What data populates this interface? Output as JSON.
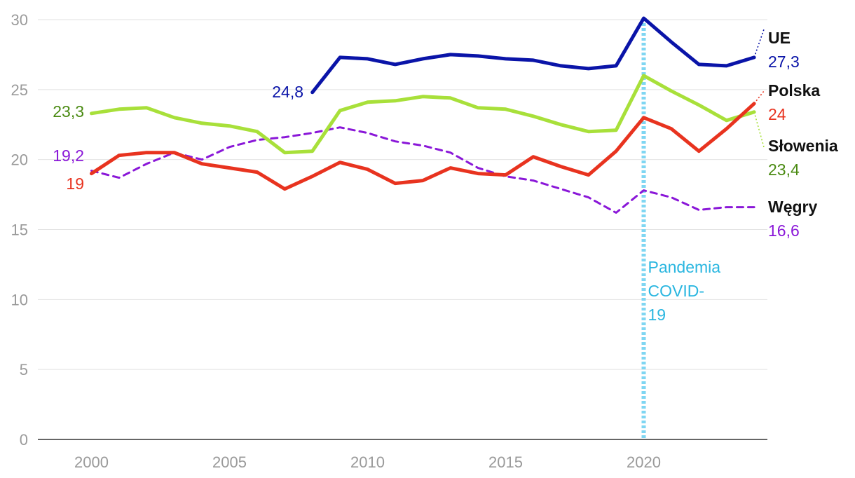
{
  "chart_data": {
    "type": "line",
    "title": "",
    "xlabel": "",
    "ylabel": "",
    "xlim": [
      1998,
      2024.5
    ],
    "ylim": [
      0,
      30
    ],
    "grid": true,
    "x_ticks": [
      2000,
      2005,
      2010,
      2015,
      2020
    ],
    "y_ticks": [
      0,
      5,
      10,
      15,
      20,
      25,
      30
    ],
    "x_tick_labels": [
      "2000",
      "2005",
      "2010",
      "2015",
      "2020"
    ],
    "y_tick_labels": [
      "0",
      "5",
      "10",
      "15",
      "20",
      "25",
      "30"
    ],
    "series": [
      {
        "name": "UE",
        "end_value_label": "27,3",
        "start_label": "24,8",
        "color": "#0a14a8",
        "style": "solid",
        "x": [
          2008,
          2009,
          2010,
          2011,
          2012,
          2013,
          2014,
          2015,
          2016,
          2017,
          2018,
          2019,
          2020,
          2021,
          2022,
          2023,
          2024
        ],
        "values": [
          24.8,
          27.3,
          27.2,
          26.8,
          27.2,
          27.5,
          27.4,
          27.2,
          27.1,
          26.7,
          26.5,
          26.7,
          30.1,
          28.4,
          26.8,
          26.7,
          27.3
        ]
      },
      {
        "name": "Polska",
        "end_value_label": "24",
        "start_label": "19",
        "color": "#e8331f",
        "style": "solid",
        "x": [
          2000,
          2001,
          2002,
          2003,
          2004,
          2005,
          2006,
          2007,
          2008,
          2009,
          2010,
          2011,
          2012,
          2013,
          2014,
          2015,
          2016,
          2017,
          2018,
          2019,
          2020,
          2021,
          2022,
          2023,
          2024
        ],
        "values": [
          19.0,
          20.3,
          20.5,
          20.5,
          19.7,
          19.4,
          19.1,
          17.9,
          18.8,
          19.8,
          19.3,
          18.3,
          18.5,
          19.4,
          19.0,
          18.9,
          20.2,
          19.5,
          18.9,
          20.6,
          23.0,
          22.2,
          20.6,
          22.2,
          24.0
        ]
      },
      {
        "name": "Słowenia",
        "end_value_label": "23,4",
        "start_label": "23,3",
        "color": "#a8e03a",
        "style": "solid",
        "x": [
          2000,
          2001,
          2002,
          2003,
          2004,
          2005,
          2006,
          2007,
          2008,
          2009,
          2010,
          2011,
          2012,
          2013,
          2014,
          2015,
          2016,
          2017,
          2018,
          2019,
          2020,
          2021,
          2022,
          2023,
          2024
        ],
        "values": [
          23.3,
          23.6,
          23.7,
          23.0,
          22.6,
          22.4,
          22.0,
          20.5,
          20.6,
          23.5,
          24.1,
          24.2,
          24.5,
          24.4,
          23.7,
          23.6,
          23.1,
          22.5,
          22.0,
          22.1,
          26.0,
          24.9,
          23.9,
          22.8,
          23.4
        ]
      },
      {
        "name": "Węgry",
        "end_value_label": "16,6",
        "start_label": "19,2",
        "color": "#8a17d8",
        "style": "dashed",
        "x": [
          2000,
          2001,
          2002,
          2003,
          2004,
          2005,
          2006,
          2007,
          2008,
          2009,
          2010,
          2011,
          2012,
          2013,
          2014,
          2015,
          2016,
          2017,
          2018,
          2019,
          2020,
          2021,
          2022,
          2023,
          2024
        ],
        "values": [
          19.2,
          18.7,
          19.7,
          20.5,
          20.0,
          20.9,
          21.4,
          21.6,
          21.9,
          22.3,
          21.9,
          21.3,
          21.0,
          20.5,
          19.4,
          18.8,
          18.5,
          17.9,
          17.3,
          16.2,
          17.8,
          17.3,
          16.4,
          16.6,
          16.6
        ]
      }
    ],
    "annotations": [
      {
        "x": 2020,
        "lines": [
          "Pandemia",
          "COVID-",
          "19"
        ],
        "color": "#29b6e0",
        "style": "dotted-vertical"
      }
    ]
  }
}
